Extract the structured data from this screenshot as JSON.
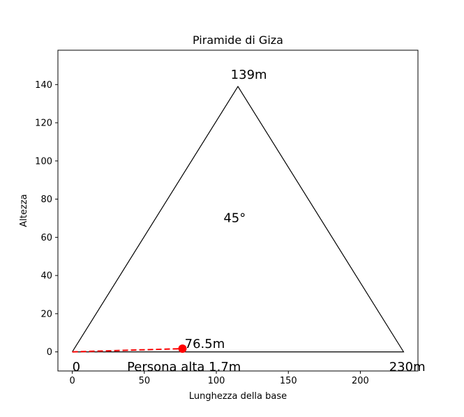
{
  "chart_data": {
    "type": "line",
    "title": "Piramide di Giza",
    "xlabel": "Lunghezza della base",
    "ylabel": "Altezza",
    "xlim": [
      -10,
      240
    ],
    "ylim": [
      -10,
      158
    ],
    "xticks": [
      0,
      50,
      100,
      150,
      200
    ],
    "yticks": [
      0,
      20,
      40,
      60,
      80,
      100,
      120,
      140
    ],
    "grid": false,
    "series": [
      {
        "style": "solid",
        "color": "#000000",
        "x": [
          0,
          115,
          230,
          0
        ],
        "y": [
          0,
          139,
          0,
          0
        ]
      },
      {
        "style": "dashed",
        "color": "#ff0000",
        "x": [
          0,
          76.5
        ],
        "y": [
          0,
          1.7
        ]
      }
    ],
    "points": [
      {
        "x": 76.5,
        "y": 1.7,
        "color": "#ff0000"
      }
    ],
    "annotations": [
      {
        "text": "139m",
        "x": 110,
        "y": 143
      },
      {
        "text": "45°",
        "x": 105,
        "y": 68
      },
      {
        "text": "76.5m",
        "x": 78,
        "y": 2
      },
      {
        "text": "0",
        "x": 0,
        "y": -10
      },
      {
        "text": "Persona alta 1.7m",
        "x": 38,
        "y": -10
      },
      {
        "text": "230m",
        "x": 220,
        "y": -10
      }
    ]
  }
}
